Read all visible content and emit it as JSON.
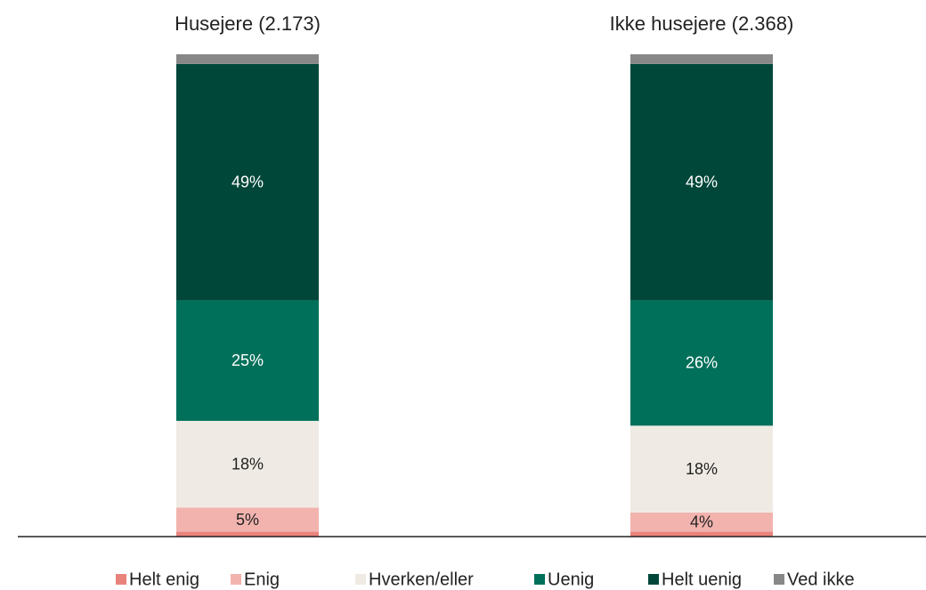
{
  "chart_data": {
    "type": "stacked-bar",
    "categories": [
      "Husejere (2.173)",
      "Ikke husejere (2.368)"
    ],
    "ylim": [
      0,
      100
    ],
    "series": [
      {
        "name": "Helt enig",
        "color": "#e8837c",
        "values": [
          1,
          1
        ],
        "value_labels": [
          null,
          null
        ]
      },
      {
        "name": "Enig",
        "color": "#f2b3ae",
        "values": [
          5,
          4
        ],
        "value_labels": [
          "5%",
          "4%"
        ]
      },
      {
        "name": "Hverken/eller",
        "color": "#efebe4",
        "values": [
          18,
          18
        ],
        "value_labels": [
          "18%",
          "18%"
        ]
      },
      {
        "name": "Uenig",
        "color": "#00705a",
        "values": [
          25,
          26
        ],
        "value_labels": [
          "25%",
          "26%"
        ]
      },
      {
        "name": "Helt uenig",
        "color": "#00473a",
        "values": [
          49,
          49
        ],
        "value_labels": [
          "49%",
          "49%"
        ]
      },
      {
        "name": "Ved ikke",
        "color": "#888888",
        "values": [
          2,
          2
        ],
        "value_labels": [
          null,
          null
        ]
      }
    ]
  }
}
